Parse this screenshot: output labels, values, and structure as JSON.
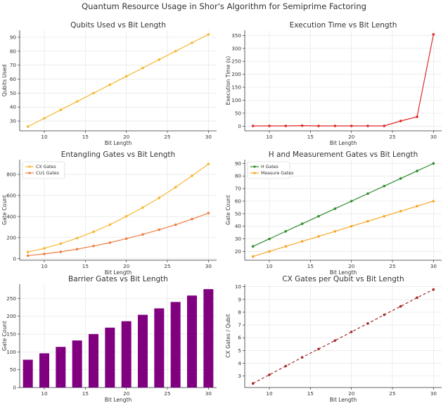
{
  "suptitle": "Quantum Resource Usage in Shor's Algorithm for Semiprime Factoring",
  "chart_data": [
    {
      "id": "qubits",
      "type": "line",
      "title": "Qubits Used vs Bit Length",
      "xlabel": "Bit Length",
      "ylabel": "Qubits Used",
      "xlim": [
        7,
        31
      ],
      "ylim": [
        23,
        95
      ],
      "xticks": [
        10,
        15,
        20,
        25,
        30
      ],
      "yticks": [
        30,
        40,
        50,
        60,
        70,
        80,
        90
      ],
      "x": [
        8,
        10,
        12,
        14,
        16,
        18,
        20,
        22,
        24,
        26,
        28,
        30
      ],
      "series": [
        {
          "values": [
            26,
            32,
            38,
            44,
            50,
            56,
            62,
            68,
            74,
            80,
            86,
            92
          ],
          "color": "#f7b731",
          "style": "solid"
        }
      ]
    },
    {
      "id": "exec",
      "type": "line",
      "title": "Execution Time vs Bit Length",
      "xlabel": "Bit Length",
      "ylabel": "Execution Time (s)",
      "xlim": [
        7,
        31
      ],
      "ylim": [
        -18,
        370
      ],
      "xticks": [
        10,
        15,
        20,
        25,
        30
      ],
      "yticks": [
        0,
        50,
        100,
        150,
        200,
        250,
        300,
        350
      ],
      "x": [
        8,
        10,
        12,
        14,
        16,
        18,
        20,
        22,
        24,
        26,
        28,
        30
      ],
      "series": [
        {
          "values": [
            1,
            1,
            1,
            2,
            1,
            1,
            1,
            1,
            1,
            20,
            36,
            354
          ],
          "color": "#e02b2b",
          "style": "solid"
        }
      ]
    },
    {
      "id": "entangling",
      "type": "line",
      "title": "Entangling Gates vs Bit Length",
      "xlabel": "Bit Length",
      "ylabel": "Gate Count",
      "xlim": [
        7,
        31
      ],
      "ylim": [
        -15,
        940
      ],
      "xticks": [
        10,
        15,
        20,
        25,
        30
      ],
      "yticks": [
        0,
        200,
        400,
        600,
        800
      ],
      "legend": "top-left",
      "x": [
        8,
        10,
        12,
        14,
        16,
        18,
        20,
        22,
        24,
        26,
        28,
        30
      ],
      "series": [
        {
          "name": "CX Gates",
          "values": [
            63,
            98,
            143,
            195,
            255,
            323,
            402,
            485,
            577,
            678,
            787,
            898
          ],
          "color": "#f7b731",
          "style": "solid"
        },
        {
          "name": "CU1 Gates",
          "values": [
            28,
            45,
            65,
            90,
            120,
            152,
            190,
            230,
            275,
            322,
            375,
            432
          ],
          "color": "#f07d41",
          "style": "solid"
        }
      ]
    },
    {
      "id": "hmeas",
      "type": "line",
      "title": "H and Measurement Gates vs Bit Length",
      "xlabel": "Bit Length",
      "ylabel": "Gate Count",
      "xlim": [
        7,
        31
      ],
      "ylim": [
        13,
        93
      ],
      "xticks": [
        10,
        15,
        20,
        25,
        30
      ],
      "yticks": [
        20,
        30,
        40,
        50,
        60,
        70,
        80,
        90
      ],
      "legend": "top-left",
      "x": [
        8,
        10,
        12,
        14,
        16,
        18,
        20,
        22,
        24,
        26,
        28,
        30
      ],
      "series": [
        {
          "name": "H Gates",
          "values": [
            24,
            30,
            36,
            42,
            48,
            54,
            60,
            66,
            72,
            78,
            84,
            90
          ],
          "color": "#2e8b2e",
          "style": "solid"
        },
        {
          "name": "Measure Gates",
          "values": [
            16,
            20,
            24,
            28,
            32,
            36,
            40,
            44,
            48,
            52,
            56,
            60
          ],
          "color": "#f7a623",
          "style": "solid"
        }
      ]
    },
    {
      "id": "barrier",
      "type": "bar",
      "title": "Barrier Gates vs Bit Length",
      "xlabel": "Bit Length",
      "ylabel": "Gate Count",
      "xlim": [
        7,
        31
      ],
      "ylim": [
        0,
        290
      ],
      "xticks": [
        10,
        15,
        20,
        25,
        30
      ],
      "yticks": [
        0,
        50,
        100,
        150,
        200,
        250
      ],
      "x": [
        8,
        10,
        12,
        14,
        16,
        18,
        20,
        22,
        24,
        26,
        28,
        30
      ],
      "series": [
        {
          "values": [
            78,
            96,
            114,
            132,
            150,
            168,
            186,
            204,
            222,
            240,
            258,
            276
          ],
          "color": "#800080"
        }
      ]
    },
    {
      "id": "ratio",
      "type": "line",
      "title": "CX Gates per Qubit vs Bit Length",
      "xlabel": "Bit Length",
      "ylabel": "CX Gates / Qubit",
      "xlim": [
        7,
        31
      ],
      "ylim": [
        2.1,
        10.2
      ],
      "xticks": [
        10,
        15,
        20,
        25,
        30
      ],
      "yticks": [
        3,
        4,
        5,
        6,
        7,
        8,
        9,
        10
      ],
      "x": [
        8,
        10,
        12,
        14,
        16,
        18,
        20,
        22,
        24,
        26,
        28,
        30
      ],
      "series": [
        {
          "values": [
            2.42,
            3.1,
            3.78,
            4.46,
            5.12,
            5.78,
            6.46,
            7.12,
            7.8,
            8.46,
            9.14,
            9.78
          ],
          "color": "#a52a2a",
          "style": "dashed"
        }
      ]
    }
  ]
}
